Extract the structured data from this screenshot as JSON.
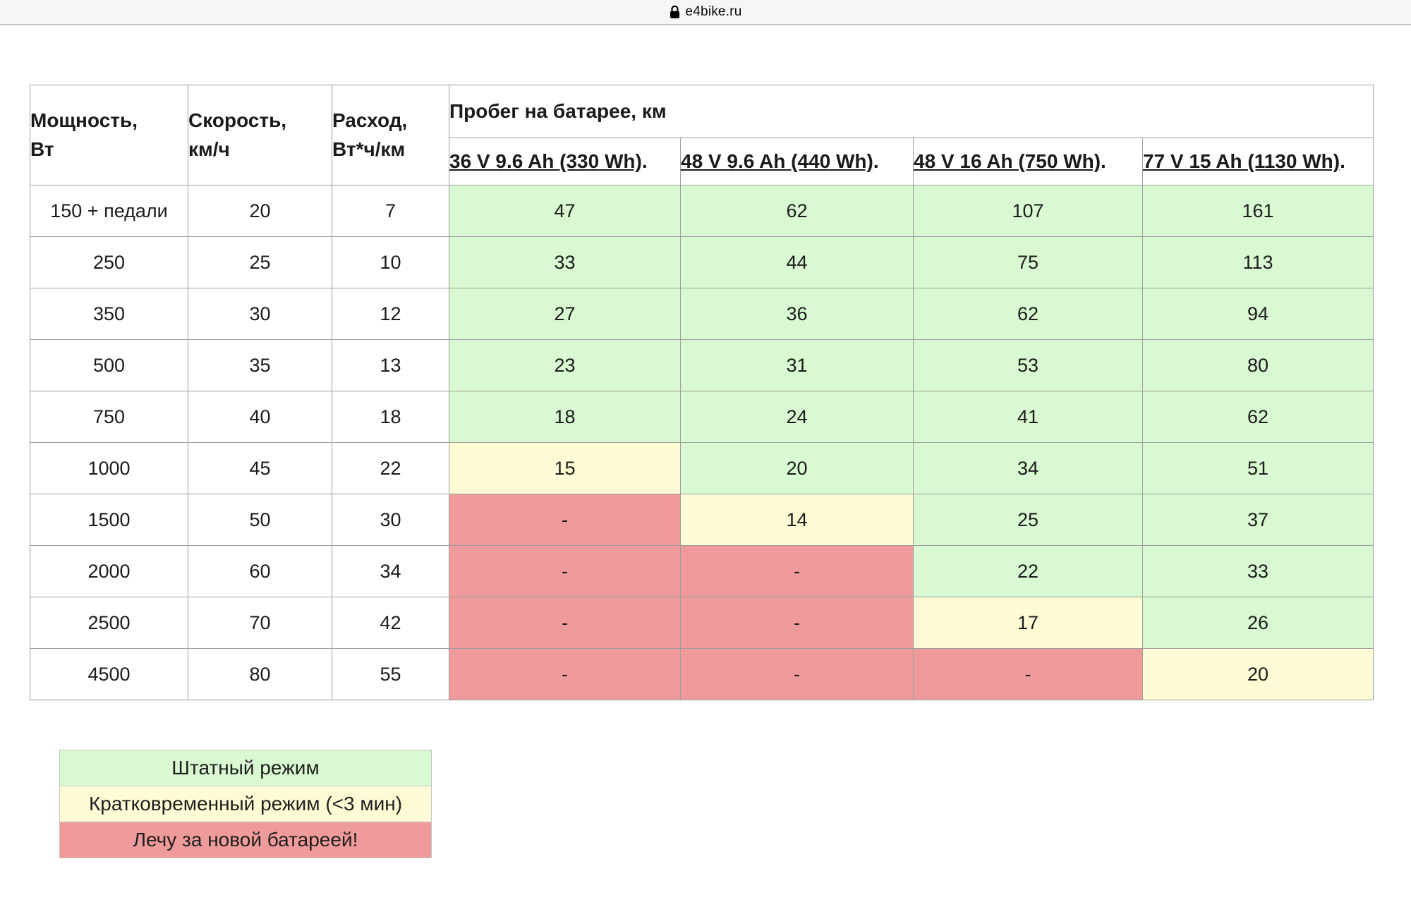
{
  "browser": {
    "url": "e4bike.ru"
  },
  "table": {
    "col_headers": [
      {
        "line1": "Мощность,",
        "line2": "Вт"
      },
      {
        "line1": "Скорость,",
        "line2": "км/ч"
      },
      {
        "line1": "Расход,",
        "line2": "Вт*ч/км"
      }
    ],
    "range_group_header": "Пробег на батарее, км",
    "battery_headers": [
      "36 V 9.6 Ah (330 Wh)",
      "48 V 9.6 Ah (440 Wh)",
      "48 V 16 Ah (750 Wh)",
      "77 V 15 Ah (1130 Wh)"
    ],
    "battery_header_suffix": ".",
    "rows": [
      {
        "power": "150 + педали",
        "speed": "20",
        "consumption": "7",
        "ranges": [
          {
            "value": "47",
            "status": "normal"
          },
          {
            "value": "62",
            "status": "normal"
          },
          {
            "value": "107",
            "status": "normal"
          },
          {
            "value": "161",
            "status": "normal"
          }
        ]
      },
      {
        "power": "250",
        "speed": "25",
        "consumption": "10",
        "ranges": [
          {
            "value": "33",
            "status": "normal"
          },
          {
            "value": "44",
            "status": "normal"
          },
          {
            "value": "75",
            "status": "normal"
          },
          {
            "value": "113",
            "status": "normal"
          }
        ]
      },
      {
        "power": "350",
        "speed": "30",
        "consumption": "12",
        "ranges": [
          {
            "value": "27",
            "status": "normal"
          },
          {
            "value": "36",
            "status": "normal"
          },
          {
            "value": "62",
            "status": "normal"
          },
          {
            "value": "94",
            "status": "normal"
          }
        ]
      },
      {
        "power": "500",
        "speed": "35",
        "consumption": "13",
        "ranges": [
          {
            "value": "23",
            "status": "normal"
          },
          {
            "value": "31",
            "status": "normal"
          },
          {
            "value": "53",
            "status": "normal"
          },
          {
            "value": "80",
            "status": "normal"
          }
        ]
      },
      {
        "power": "750",
        "speed": "40",
        "consumption": "18",
        "ranges": [
          {
            "value": "18",
            "status": "normal"
          },
          {
            "value": "24",
            "status": "normal"
          },
          {
            "value": "41",
            "status": "normal"
          },
          {
            "value": "62",
            "status": "normal"
          }
        ]
      },
      {
        "power": "1000",
        "speed": "45",
        "consumption": "22",
        "ranges": [
          {
            "value": "15",
            "status": "short"
          },
          {
            "value": "20",
            "status": "normal"
          },
          {
            "value": "34",
            "status": "normal"
          },
          {
            "value": "51",
            "status": "normal"
          }
        ]
      },
      {
        "power": "1500",
        "speed": "50",
        "consumption": "30",
        "ranges": [
          {
            "value": "-",
            "status": "dead"
          },
          {
            "value": "14",
            "status": "short"
          },
          {
            "value": "25",
            "status": "normal"
          },
          {
            "value": "37",
            "status": "normal"
          }
        ]
      },
      {
        "power": "2000",
        "speed": "60",
        "consumption": "34",
        "ranges": [
          {
            "value": "-",
            "status": "dead"
          },
          {
            "value": "-",
            "status": "dead"
          },
          {
            "value": "22",
            "status": "normal"
          },
          {
            "value": "33",
            "status": "normal"
          }
        ]
      },
      {
        "power": "2500",
        "speed": "70",
        "consumption": "42",
        "ranges": [
          {
            "value": "-",
            "status": "dead"
          },
          {
            "value": "-",
            "status": "dead"
          },
          {
            "value": "17",
            "status": "short"
          },
          {
            "value": "26",
            "status": "normal"
          }
        ]
      },
      {
        "power": "4500",
        "speed": "80",
        "consumption": "55",
        "ranges": [
          {
            "value": "-",
            "status": "dead"
          },
          {
            "value": "-",
            "status": "dead"
          },
          {
            "value": "-",
            "status": "dead"
          },
          {
            "value": "20",
            "status": "short"
          }
        ]
      }
    ]
  },
  "legend": [
    {
      "label": "Штатный режим",
      "status": "normal"
    },
    {
      "label": "Кратковременный режим (<3 мин)",
      "status": "short"
    },
    {
      "label": "Лечу за новой батареей!",
      "status": "dead"
    }
  ],
  "colors": {
    "normal": "#d8f9d1",
    "short": "#fefcd5",
    "dead": "#f09b9b"
  }
}
